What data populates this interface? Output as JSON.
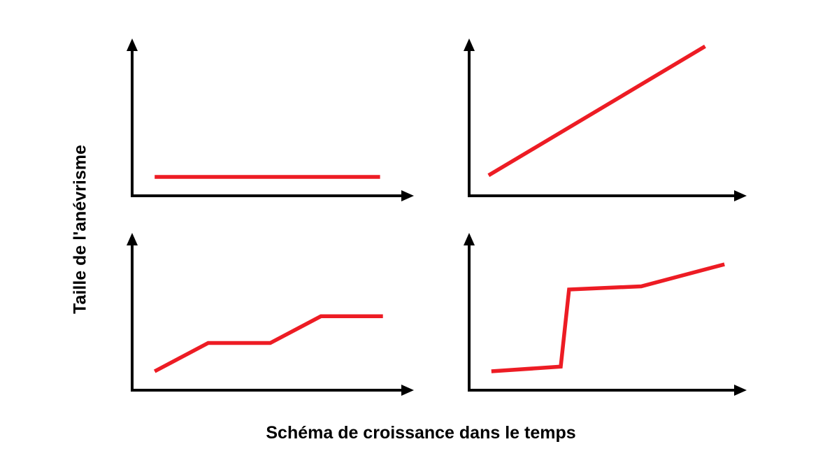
{
  "figure": {
    "y_axis_label": "Taille de l'anévrisme",
    "x_axis_label": "Schéma de croissance dans le temps",
    "background_color": "#FFFFFF",
    "axis_color": "#000000",
    "line_color": "#ED1C24"
  },
  "chart_data": [
    {
      "type": "line",
      "name": "croissance-nulle",
      "position": "top-left",
      "description": "Ligne plate horizontale basse : aucune croissance de l'anévrisme dans le temps",
      "title": "",
      "xlabel": "",
      "ylabel": "",
      "xlim": [
        0,
        1
      ],
      "ylim": [
        0,
        1
      ],
      "grid": false,
      "legend": false,
      "points": [
        [
          0.08,
          0.12
        ],
        [
          0.88,
          0.12
        ]
      ]
    },
    {
      "type": "line",
      "name": "croissance-lineaire",
      "position": "top-right",
      "description": "Droite ascendante : croissance linéaire constante de l'anévrisme",
      "title": "",
      "xlabel": "",
      "ylabel": "",
      "xlim": [
        0,
        1
      ],
      "ylim": [
        0,
        1
      ],
      "grid": false,
      "legend": false,
      "points": [
        [
          0.07,
          0.13
        ],
        [
          0.85,
          0.95
        ]
      ]
    },
    {
      "type": "line",
      "name": "croissance-par-paliers",
      "position": "bottom-left",
      "description": "Croissance progressive par paliers : montée, plateau, montée, plateau",
      "title": "",
      "xlabel": "",
      "ylabel": "",
      "xlim": [
        0,
        1
      ],
      "ylim": [
        0,
        1
      ],
      "grid": false,
      "legend": false,
      "points": [
        [
          0.08,
          0.12
        ],
        [
          0.27,
          0.3
        ],
        [
          0.49,
          0.3
        ],
        [
          0.67,
          0.47
        ],
        [
          0.89,
          0.47
        ]
      ]
    },
    {
      "type": "line",
      "name": "croissance-saut-brusque",
      "position": "bottom-right",
      "description": "Plateau bas puis saut brusque quasi vertical suivi d'une croissance lente",
      "title": "",
      "xlabel": "",
      "ylabel": "",
      "xlim": [
        0,
        1
      ],
      "ylim": [
        0,
        1
      ],
      "grid": false,
      "legend": false,
      "points": [
        [
          0.08,
          0.12
        ],
        [
          0.33,
          0.15
        ],
        [
          0.36,
          0.64
        ],
        [
          0.62,
          0.66
        ],
        [
          0.92,
          0.8
        ]
      ]
    }
  ]
}
